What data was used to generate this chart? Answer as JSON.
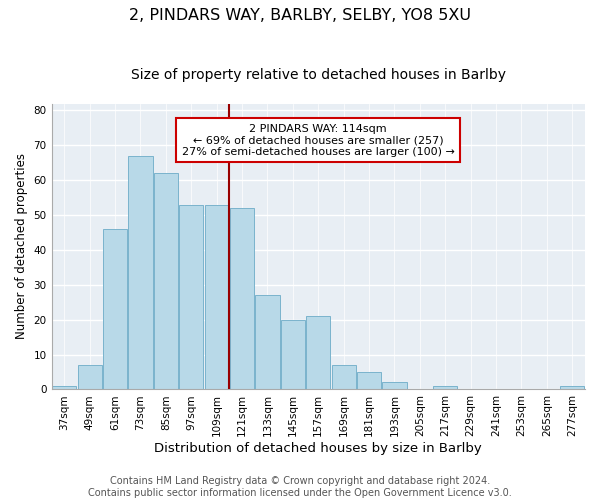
{
  "title1": "2, PINDARS WAY, BARLBY, SELBY, YO8 5XU",
  "title2": "Size of property relative to detached houses in Barlby",
  "xlabel": "Distribution of detached houses by size in Barlby",
  "ylabel": "Number of detached properties",
  "bar_color": "#b8d9e8",
  "bar_edge_color": "#7ab3cc",
  "bg_color": "#e8eef4",
  "categories": [
    "37sqm",
    "49sqm",
    "61sqm",
    "73sqm",
    "85sqm",
    "97sqm",
    "109sqm",
    "121sqm",
    "133sqm",
    "145sqm",
    "157sqm",
    "169sqm",
    "181sqm",
    "193sqm",
    "205sqm",
    "217sqm",
    "229sqm",
    "241sqm",
    "253sqm",
    "265sqm",
    "277sqm"
  ],
  "values": [
    1,
    7,
    46,
    67,
    62,
    53,
    53,
    52,
    27,
    20,
    21,
    7,
    5,
    2,
    0,
    1,
    0,
    0,
    0,
    0,
    1
  ],
  "vline_color": "#990000",
  "annotation_title": "2 PINDARS WAY: 114sqm",
  "annotation_line1": "← 69% of detached houses are smaller (257)",
  "annotation_line2": "27% of semi-detached houses are larger (100) →",
  "footer_line1": "Contains HM Land Registry data © Crown copyright and database right 2024.",
  "footer_line2": "Contains public sector information licensed under the Open Government Licence v3.0.",
  "ylim": [
    0,
    82
  ],
  "title1_fontsize": 11.5,
  "title2_fontsize": 10,
  "xlabel_fontsize": 9.5,
  "ylabel_fontsize": 8.5,
  "tick_fontsize": 7.5,
  "footer_fontsize": 7
}
